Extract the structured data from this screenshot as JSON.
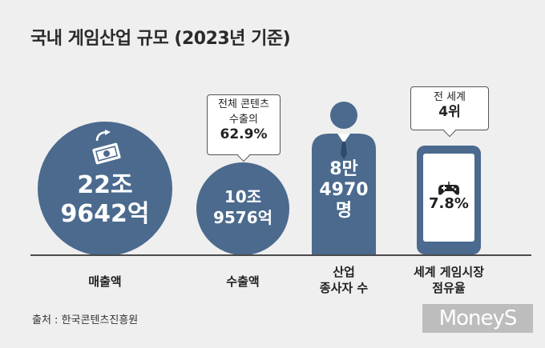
{
  "title": "국내 게임산업 규모 (2023년 기준)",
  "items": [
    {
      "value_line1": "22조",
      "value_line2": "9642억",
      "label": "매출액"
    },
    {
      "value_line1": "10조",
      "value_line2": "9576억",
      "label": "수출액",
      "bubble": {
        "line1": "전체 콘텐츠",
        "line2": "수출의",
        "line3": "62.9%"
      }
    },
    {
      "value_line1": "8만",
      "value_line2": "4970",
      "value_line3": "명",
      "label_line1": "산업",
      "label_line2": "종사자 수"
    },
    {
      "value": "7.8%",
      "label_line1": "세계 게임시장",
      "label_line2": "점유율",
      "bubble": {
        "line1": "전 세계",
        "line2": "4위"
      }
    }
  ],
  "source": "출처 : 한국콘텐츠진흥원",
  "logo": "MoneyS",
  "colors": {
    "accent": "#4b6a8e",
    "background": "#efefef"
  }
}
